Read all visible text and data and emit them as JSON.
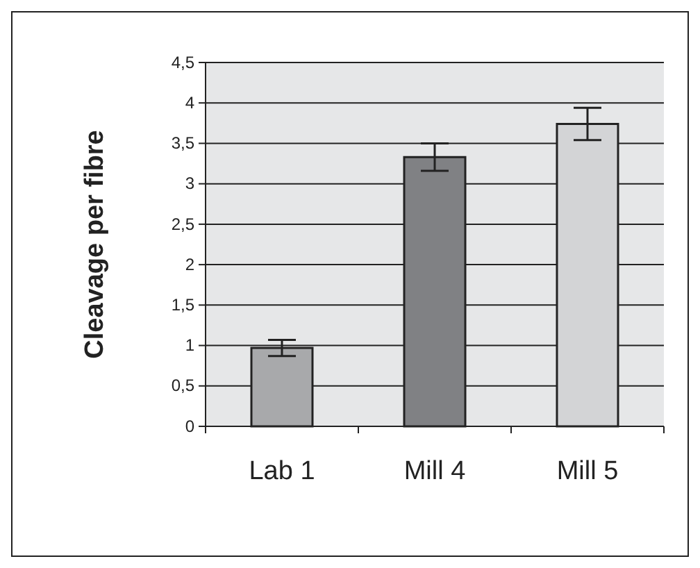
{
  "chart_data": {
    "type": "bar",
    "ylabel": "Cleavage per fibre",
    "categories": [
      "Lab 1",
      "Mill 4",
      "Mill 5"
    ],
    "values": [
      0.97,
      3.33,
      3.74
    ],
    "colors": [
      "#a8a9ab",
      "#808184",
      "#d3d4d6"
    ],
    "errors": [
      0.1,
      0.17,
      0.2
    ],
    "ylim": [
      0,
      4.5
    ],
    "yticks": [
      {
        "value": 0,
        "label": "0"
      },
      {
        "value": 0.5,
        "label": "0,5"
      },
      {
        "value": 1,
        "label": "1"
      },
      {
        "value": 1.5,
        "label": "1,5"
      },
      {
        "value": 2,
        "label": "2"
      },
      {
        "value": 2.5,
        "label": "2,5"
      },
      {
        "value": 3,
        "label": "3"
      },
      {
        "value": 3.5,
        "label": "3,5"
      },
      {
        "value": 4,
        "label": "4"
      },
      {
        "value": 4.5,
        "label": "4,5"
      }
    ],
    "grid": "y"
  }
}
